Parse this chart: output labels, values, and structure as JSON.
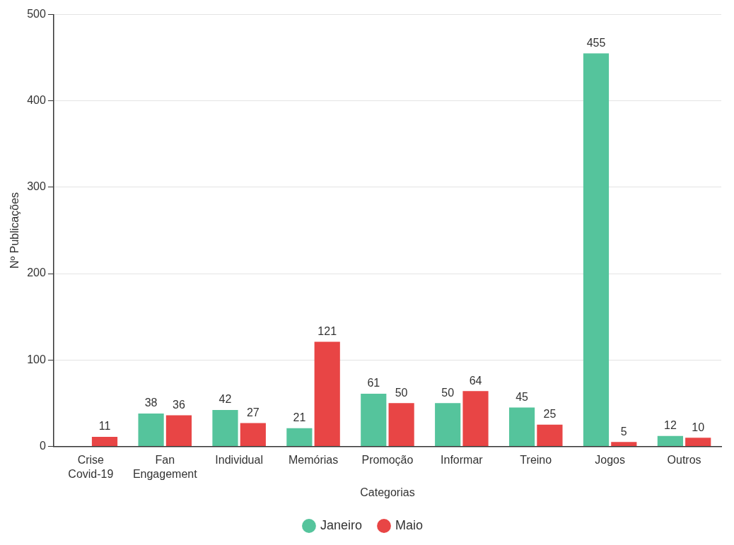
{
  "chart_data": {
    "type": "bar",
    "xlabel": "Categorias",
    "ylabel": "Nº Publicações",
    "categories": [
      "Crise Covid-19",
      "Fan Engagement",
      "Individual",
      "Memórias",
      "Promoção",
      "Informar",
      "Treino",
      "Jogos",
      "Outros"
    ],
    "series": [
      {
        "name": "Janeiro",
        "color": "#55c49c",
        "values": [
          null,
          38,
          42,
          21,
          61,
          50,
          45,
          455,
          12
        ]
      },
      {
        "name": "Maio",
        "color": "#e84545",
        "values": [
          11,
          36,
          27,
          121,
          50,
          64,
          25,
          5,
          10
        ]
      }
    ],
    "ylim": [
      0,
      500
    ],
    "yticks": [
      0,
      100,
      200,
      300,
      400,
      500
    ],
    "grid": "y",
    "legend": "bottom",
    "data_labels": true
  }
}
